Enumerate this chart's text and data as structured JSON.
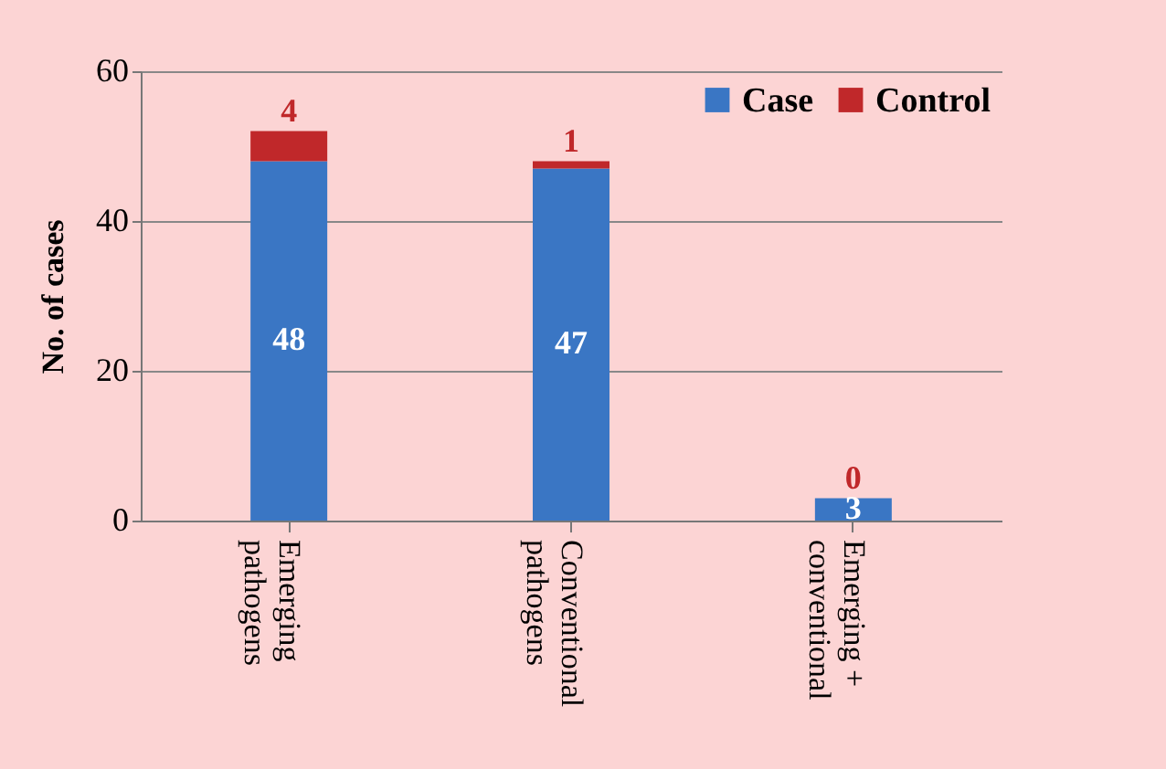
{
  "chart_data": {
    "type": "bar",
    "stacked": true,
    "ylabel": "No. of cases",
    "categories": [
      "Emerging pathogens",
      "Conventional pathogens",
      "Emerging + conventional"
    ],
    "series": [
      {
        "name": "Case",
        "color": "#3a76c4",
        "values": [
          48,
          47,
          3
        ]
      },
      {
        "name": "Control",
        "color": "#c0282a",
        "values": [
          4,
          1,
          0
        ]
      }
    ],
    "ylim": [
      0,
      60
    ],
    "yticks": [
      0,
      20,
      40,
      60
    ],
    "grid": "y",
    "legend": "top right",
    "data_labels": true
  }
}
